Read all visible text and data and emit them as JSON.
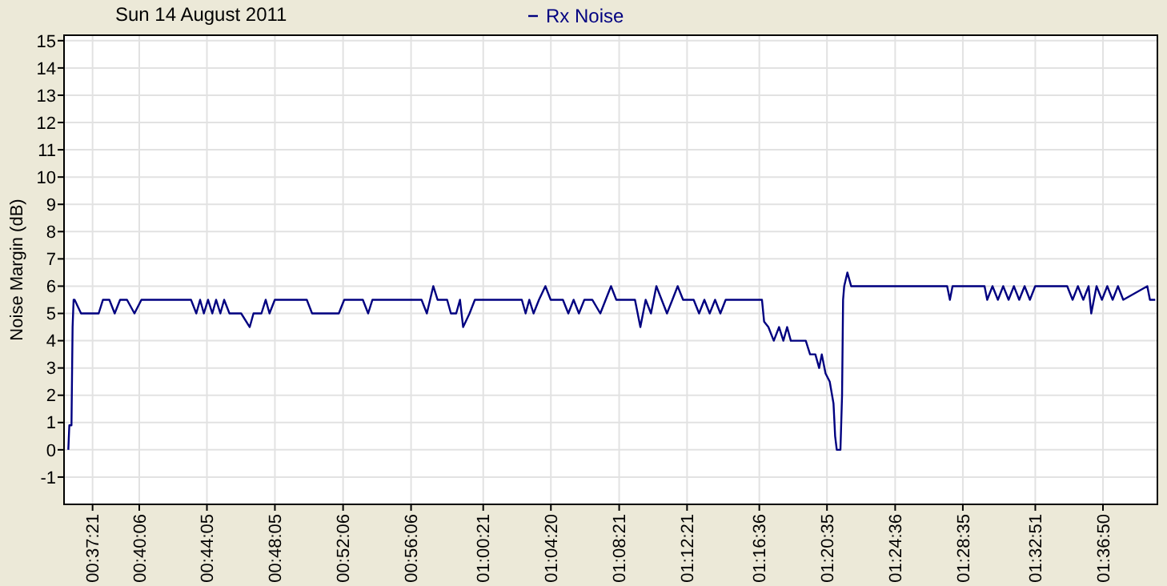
{
  "chart_data": {
    "type": "line",
    "title": "Sun 14 August 2011",
    "ylabel": "Noise Margin (dB)",
    "legend": "top",
    "grid": true,
    "marker": "none",
    "line_style": "solid",
    "xlim": [
      0.5945,
      1.6673
    ],
    "ylim": [
      -2,
      15.2
    ],
    "yticks": [
      -1,
      0,
      1,
      2,
      3,
      4,
      5,
      6,
      7,
      8,
      9,
      10,
      11,
      12,
      13,
      14,
      15
    ],
    "xticks": [
      {
        "value": 0.6225,
        "label": "00:37:21"
      },
      {
        "value": 0.6683,
        "label": "00:40:06"
      },
      {
        "value": 0.7347,
        "label": "00:44:05"
      },
      {
        "value": 0.8014,
        "label": "00:48:05"
      },
      {
        "value": 0.8683,
        "label": "00:52:06"
      },
      {
        "value": 0.935,
        "label": "00:56:06"
      },
      {
        "value": 1.0058,
        "label": "01:00:21"
      },
      {
        "value": 1.0722,
        "label": "01:04:20"
      },
      {
        "value": 1.1392,
        "label": "01:08:21"
      },
      {
        "value": 1.2058,
        "label": "01:12:21"
      },
      {
        "value": 1.2767,
        "label": "01:16:36"
      },
      {
        "value": 1.3431,
        "label": "01:20:35"
      },
      {
        "value": 1.41,
        "label": "01:24:36"
      },
      {
        "value": 1.4764,
        "label": "01:28:35"
      },
      {
        "value": 1.5475,
        "label": "01:32:51"
      },
      {
        "value": 1.6139,
        "label": "01:36:50"
      }
    ],
    "series": [
      {
        "name": "Rx Noise",
        "color": "#000080",
        "x": [
          0.5987,
          0.5997,
          0.6018,
          0.6029,
          0.6039,
          0.6049,
          0.6112,
          0.6285,
          0.6327,
          0.639,
          0.6442,
          0.6495,
          0.6563,
          0.6636,
          0.6704,
          0.7191,
          0.7243,
          0.728,
          0.7317,
          0.7358,
          0.74,
          0.7437,
          0.7479,
          0.7516,
          0.7568,
          0.7683,
          0.7767,
          0.7804,
          0.7882,
          0.7924,
          0.7961,
          0.8013,
          0.8327,
          0.8379,
          0.8641,
          0.8694,
          0.8877,
          0.8929,
          0.8971,
          0.9453,
          0.9505,
          0.9568,
          0.961,
          0.9704,
          0.9741,
          0.9793,
          0.983,
          0.9861,
          0.9924,
          0.9976,
          1.0437,
          1.0474,
          1.051,
          1.0552,
          1.0605,
          1.0668,
          1.072,
          1.084,
          1.0893,
          1.0945,
          1.0997,
          1.105,
          1.1128,
          1.1207,
          1.1312,
          1.1364,
          1.1547,
          1.16,
          1.1652,
          1.1704,
          1.1757,
          1.1809,
          1.1861,
          1.1914,
          1.1966,
          1.2019,
          1.2123,
          1.2176,
          1.2228,
          1.228,
          1.2333,
          1.2385,
          1.2437,
          1.2793,
          1.2814,
          1.2856,
          1.2909,
          1.2961,
          1.3003,
          1.304,
          1.3076,
          1.3223,
          1.3265,
          1.3317,
          1.3354,
          1.338,
          1.3417,
          1.3458,
          1.3495,
          1.3511,
          1.3527,
          1.3563,
          1.3579,
          1.3589,
          1.36,
          1.3631,
          1.3668,
          1.461,
          1.4637,
          1.4663,
          1.4977,
          1.5003,
          1.5055,
          1.5108,
          1.516,
          1.5213,
          1.5265,
          1.5317,
          1.537,
          1.5422,
          1.5474,
          1.5788,
          1.5841,
          1.5893,
          1.5946,
          1.5998,
          1.6024,
          1.6076,
          1.6129,
          1.6181,
          1.6234,
          1.6286,
          1.6338,
          1.6574,
          1.66,
          1.6652
        ],
        "values": [
          0,
          0.9,
          0.9,
          4.5,
          5.5,
          5.5,
          5,
          5,
          5.5,
          5.5,
          5,
          5.5,
          5.5,
          5,
          5.5,
          5.5,
          5,
          5.5,
          5,
          5.5,
          5,
          5.5,
          5,
          5.5,
          5,
          5,
          4.5,
          5,
          5,
          5.5,
          5,
          5.5,
          5.5,
          5,
          5,
          5.5,
          5.5,
          5,
          5.5,
          5.5,
          5,
          6,
          5.5,
          5.5,
          5,
          5,
          5.5,
          4.5,
          5,
          5.5,
          5.5,
          5,
          5.5,
          5,
          5.5,
          6,
          5.5,
          5.5,
          5,
          5.5,
          5,
          5.5,
          5.5,
          5,
          6,
          5.5,
          5.5,
          4.5,
          5.5,
          5,
          6,
          5.5,
          5,
          5.5,
          6,
          5.5,
          5.5,
          5,
          5.5,
          5,
          5.5,
          5,
          5.5,
          5.5,
          4.7,
          4.5,
          4,
          4.5,
          4,
          4.5,
          4,
          4,
          3.5,
          3.5,
          3,
          3.5,
          2.8,
          2.5,
          1.7,
          0.5,
          0,
          0,
          2,
          5.5,
          6,
          6.5,
          6,
          6,
          5.5,
          6,
          6,
          5.5,
          6,
          5.5,
          6,
          5.5,
          6,
          5.5,
          6,
          5.5,
          6,
          6,
          5.5,
          6,
          5.5,
          6,
          5,
          6,
          5.5,
          6,
          5.5,
          6,
          5.5,
          6,
          5.5,
          5.5
        ]
      }
    ]
  }
}
